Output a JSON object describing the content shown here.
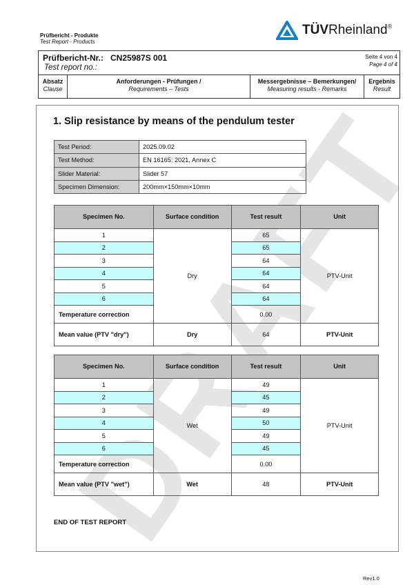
{
  "header": {
    "doc_type_de": "Prüfbericht - Produkte",
    "doc_type_en": "Test Report - Products",
    "logo": "TÜVRheinland",
    "report_no_label_de": "Prüfbericht-Nr.:",
    "report_no": "CN25987S 001",
    "report_no_label_en": "Test report no.:",
    "page_de": "Seite 4 von 4",
    "page_en": "Page 4 of 4",
    "columns": [
      {
        "de": "Absatz",
        "en": "Clause"
      },
      {
        "de": "Anforderungen - Prüfungen /",
        "en": "Requirements – Tests"
      },
      {
        "de": "Messergebnisse – Bemerkungen/",
        "en": "Measuring results - Remarks"
      },
      {
        "de": "Ergebnis",
        "en": "Result"
      }
    ]
  },
  "section_title": "1. Slip resistance by means of the pendulum tester",
  "info": [
    {
      "label": "Test Period:",
      "value": "2025.09.02"
    },
    {
      "label": "Test Method:",
      "value": "EN 16165: 2021, Annex C"
    },
    {
      "label": "Slider Material:",
      "value": "Slider 57"
    },
    {
      "label": "Specimen Dimension:",
      "value": "200mm×150mm×10mm"
    }
  ],
  "table_headers": [
    "Specimen No.",
    "Surface condition",
    "Test result",
    "Unit"
  ],
  "dry": {
    "specimens": [
      "1",
      "2",
      "3",
      "4",
      "5",
      "6"
    ],
    "results": [
      "65",
      "65",
      "64",
      "64",
      "64",
      "64"
    ],
    "condition": "Dry",
    "unit": "PTV-Unit",
    "temp_label": "Temperature correction",
    "temp_value": "0.00",
    "mean_label": "Mean value (PTV \"dry\")",
    "mean_condition": "Dry",
    "mean_value": "64",
    "mean_unit": "PTV-Unit"
  },
  "wet": {
    "specimens": [
      "1",
      "2",
      "3",
      "4",
      "5",
      "6"
    ],
    "results": [
      "49",
      "45",
      "49",
      "50",
      "49",
      "45"
    ],
    "condition": "Wet",
    "unit": "PTV-Unit",
    "temp_label": "Temperature correction",
    "temp_value": "0.00",
    "mean_label": "Mean value (PTV \"wet\")",
    "mean_condition": "Wet",
    "mean_value": "48",
    "mean_unit": "PTV-Unit"
  },
  "end_text": "END OF TEST REPORT",
  "revision": "Rev1.0",
  "watermark": "DRAFT",
  "colors": {
    "highlight": "#c8fdfd",
    "header_fill": "#c4c4c4",
    "logo_blue": "#1a7fc1"
  }
}
